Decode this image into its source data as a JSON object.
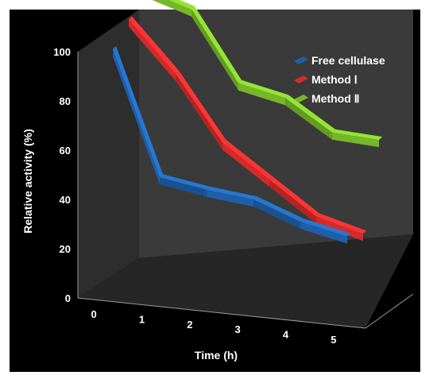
{
  "chart_data": {
    "type": "line",
    "title": "",
    "xlabel": "Time (h)",
    "ylabel": "Relative activity (%)",
    "categories": [
      "0",
      "1",
      "2",
      "3",
      "4",
      "5"
    ],
    "ylim": [
      0,
      100
    ],
    "yticks": [
      0,
      20,
      40,
      60,
      80,
      100
    ],
    "grid": false,
    "legend_position": "top-right",
    "style": "3d",
    "series": [
      {
        "name": "Free cellulase",
        "values": [
          100,
          48,
          43,
          39,
          30,
          24
        ],
        "color": "#1f5fa8"
      },
      {
        "name": "Method Ⅰ",
        "values": [
          105,
          83,
          55,
          40,
          25,
          18
        ],
        "color": "#d42a2a"
      },
      {
        "name": "Method Ⅱ",
        "values": [
          110,
          102,
          72,
          66,
          52,
          49
        ],
        "color": "#76b729"
      }
    ]
  }
}
